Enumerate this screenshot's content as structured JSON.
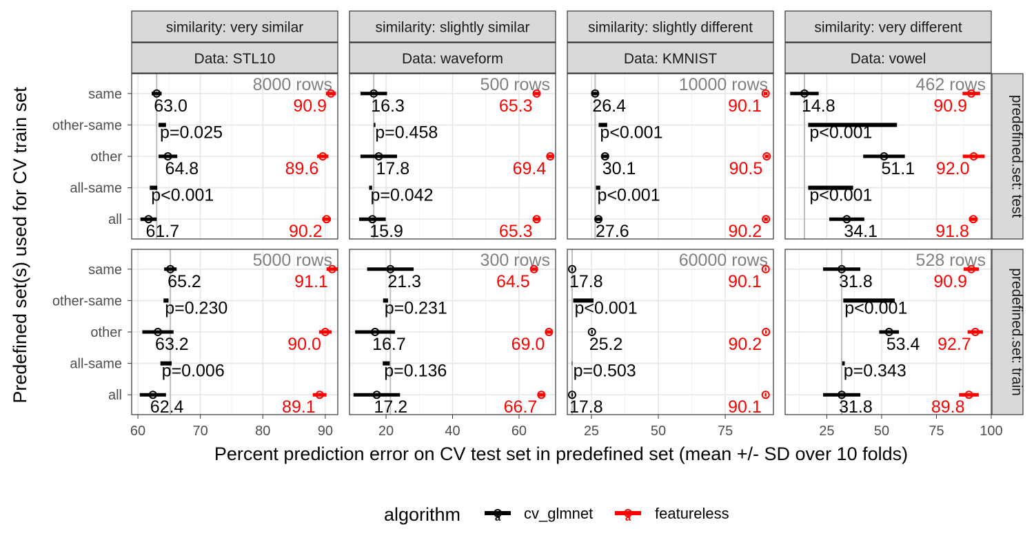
{
  "axis": {
    "xlabel": "Percent prediction error on CV test set in predefined set (mean +/- SD over 10 folds)",
    "ylabel": "Predefined set(s) used for CV train set"
  },
  "legend": {
    "title": "algorithm",
    "items": [
      {
        "name": "cv_glmnet",
        "color": "#000000",
        "key_glyph": "a"
      },
      {
        "name": "featureless",
        "color": "#ff0000",
        "key_glyph": "a"
      }
    ]
  },
  "colors": {
    "cv_glmnet": "#000000",
    "featureless": "#ff0000",
    "rows_label": "#808080",
    "reference_line": "#bdbdbd",
    "strip_fill": "#d9d9d9"
  },
  "chart_data": {
    "type": "scatter",
    "description_note": "",
    "categories": [
      "same",
      "other-same",
      "other",
      "all-same",
      "all"
    ],
    "rows": [
      {
        "label": "predefined.set: test",
        "set": "test"
      },
      {
        "label": "predefined.set: train",
        "set": "train"
      }
    ],
    "columns": [
      {
        "similarity": "similarity: very similar",
        "data": "Data: STL10",
        "xlim": [
          59,
          92
        ],
        "ticks": [
          60,
          70,
          80,
          90
        ],
        "tick_labels": [
          "60",
          "70",
          "80",
          "90"
        ]
      },
      {
        "similarity": "similarity: slightly similar",
        "data": "Data: waveform",
        "xlim": [
          9,
          71
        ],
        "ticks": [
          20,
          40,
          60
        ],
        "tick_labels": [
          "20",
          "40",
          "60"
        ]
      },
      {
        "similarity": "similarity: slightly different",
        "data": "Data: KMNIST",
        "xlim": [
          16,
          93
        ],
        "ticks": [
          25,
          50,
          75
        ],
        "tick_labels": [
          "25",
          "50",
          "75"
        ]
      },
      {
        "similarity": "similarity: very different",
        "data": "Data: vowel",
        "xlim": [
          6,
          100
        ],
        "ticks": [
          25,
          50,
          75,
          100
        ],
        "tick_labels": [
          "25",
          "50",
          "75",
          "100"
        ]
      }
    ],
    "panels": [
      {
        "col": 0,
        "row": 0,
        "rows_label": "8000 rows",
        "reference": 63.0,
        "points": [
          {
            "category": "same",
            "algorithm": "cv_glmnet",
            "mean": 63.0,
            "sd": 0.8,
            "label": "63.0"
          },
          {
            "category": "same",
            "algorithm": "featureless",
            "mean": 90.9,
            "sd": 0.8,
            "label": "90.9"
          },
          {
            "category": "other",
            "algorithm": "cv_glmnet",
            "mean": 64.8,
            "sd": 1.5,
            "label": "64.8"
          },
          {
            "category": "other",
            "algorithm": "featureless",
            "mean": 89.6,
            "sd": 0.9,
            "label": "89.6"
          },
          {
            "category": "all",
            "algorithm": "cv_glmnet",
            "mean": 61.7,
            "sd": 1.3,
            "label": "61.7"
          },
          {
            "category": "all",
            "algorithm": "featureless",
            "mean": 90.2,
            "sd": 0.7,
            "label": "90.2"
          }
        ],
        "diffs": [
          {
            "category": "other-same",
            "lo": 63.3,
            "hi": 64.5,
            "label": "p=0.025"
          },
          {
            "category": "all-same",
            "lo": 61.9,
            "hi": 63.1,
            "label": "p<0.001"
          }
        ]
      },
      {
        "col": 1,
        "row": 0,
        "rows_label": "500 rows",
        "reference": 16.3,
        "points": [
          {
            "category": "same",
            "algorithm": "cv_glmnet",
            "mean": 16.3,
            "sd": 4.0,
            "label": "16.3"
          },
          {
            "category": "same",
            "algorithm": "featureless",
            "mean": 65.3,
            "sd": 0.8,
            "label": "65.3"
          },
          {
            "category": "other",
            "algorithm": "cv_glmnet",
            "mean": 17.8,
            "sd": 5.5,
            "label": "17.8"
          },
          {
            "category": "other",
            "algorithm": "featureless",
            "mean": 69.4,
            "sd": 0.8,
            "label": "69.4"
          },
          {
            "category": "all",
            "algorithm": "cv_glmnet",
            "mean": 15.9,
            "sd": 4.0,
            "label": "15.9"
          },
          {
            "category": "all",
            "algorithm": "featureless",
            "mean": 65.3,
            "sd": 0.8,
            "label": "65.3"
          }
        ],
        "diffs": [
          {
            "category": "other-same",
            "lo": 16.3,
            "hi": 16.8,
            "label": "p=0.458"
          },
          {
            "category": "all-same",
            "lo": 14.9,
            "hi": 15.8,
            "label": "p=0.042"
          }
        ]
      },
      {
        "col": 2,
        "row": 0,
        "rows_label": "10000 rows",
        "reference": 26.4,
        "points": [
          {
            "category": "same",
            "algorithm": "cv_glmnet",
            "mean": 26.4,
            "sd": 1.2,
            "label": "26.4"
          },
          {
            "category": "same",
            "algorithm": "featureless",
            "mean": 90.1,
            "sd": 0.7,
            "label": "90.1"
          },
          {
            "category": "other",
            "algorithm": "cv_glmnet",
            "mean": 30.1,
            "sd": 1.5,
            "label": "30.1"
          },
          {
            "category": "other",
            "algorithm": "featureless",
            "mean": 90.5,
            "sd": 0.7,
            "label": "90.5"
          },
          {
            "category": "all",
            "algorithm": "cv_glmnet",
            "mean": 27.6,
            "sd": 1.2,
            "label": "27.6"
          },
          {
            "category": "all",
            "algorithm": "featureless",
            "mean": 90.2,
            "sd": 0.7,
            "label": "90.2"
          }
        ],
        "diffs": [
          {
            "category": "other-same",
            "lo": 27.7,
            "hi": 30.9,
            "label": "p<0.001"
          },
          {
            "category": "all-same",
            "lo": 26.7,
            "hi": 28.3,
            "label": "p<0.001"
          }
        ]
      },
      {
        "col": 3,
        "row": 0,
        "rows_label": "462 rows",
        "reference": 14.8,
        "points": [
          {
            "category": "same",
            "algorithm": "cv_glmnet",
            "mean": 14.8,
            "sd": 6.5,
            "label": "14.8"
          },
          {
            "category": "same",
            "algorithm": "featureless",
            "mean": 90.9,
            "sd": 4.0,
            "label": "90.9"
          },
          {
            "category": "other",
            "algorithm": "cv_glmnet",
            "mean": 51.1,
            "sd": 9.5,
            "label": "51.1"
          },
          {
            "category": "other",
            "algorithm": "featureless",
            "mean": 92.0,
            "sd": 5.0,
            "label": "92.0"
          },
          {
            "category": "all",
            "algorithm": "cv_glmnet",
            "mean": 34.1,
            "sd": 8.0,
            "label": "34.1"
          },
          {
            "category": "all",
            "algorithm": "featureless",
            "mean": 91.8,
            "sd": 2.0,
            "label": "91.8"
          }
        ],
        "diffs": [
          {
            "category": "other-same",
            "lo": 16.5,
            "hi": 57.0,
            "label": "p<0.001"
          },
          {
            "category": "all-same",
            "lo": 16.5,
            "hi": 37.0,
            "label": "p<0.001"
          }
        ]
      },
      {
        "col": 0,
        "row": 1,
        "rows_label": "5000 rows",
        "reference": 65.2,
        "points": [
          {
            "category": "same",
            "algorithm": "cv_glmnet",
            "mean": 65.2,
            "sd": 1.0,
            "label": "65.2"
          },
          {
            "category": "same",
            "algorithm": "featureless",
            "mean": 91.1,
            "sd": 0.9,
            "label": "91.1"
          },
          {
            "category": "other",
            "algorithm": "cv_glmnet",
            "mean": 63.2,
            "sd": 2.5,
            "label": "63.2"
          },
          {
            "category": "other",
            "algorithm": "featureless",
            "mean": 90.0,
            "sd": 1.0,
            "label": "90.0"
          },
          {
            "category": "all",
            "algorithm": "cv_glmnet",
            "mean": 62.4,
            "sd": 2.1,
            "label": "62.4"
          },
          {
            "category": "all",
            "algorithm": "featureless",
            "mean": 89.1,
            "sd": 1.1,
            "label": "89.1"
          }
        ],
        "diffs": [
          {
            "category": "other-same",
            "lo": 64.1,
            "hi": 64.9,
            "label": "p=0.230"
          },
          {
            "category": "all-same",
            "lo": 63.6,
            "hi": 65.4,
            "label": "p=0.006"
          }
        ]
      },
      {
        "col": 1,
        "row": 1,
        "rows_label": "300 rows",
        "reference": 21.3,
        "points": [
          {
            "category": "same",
            "algorithm": "cv_glmnet",
            "mean": 21.3,
            "sd": 7.0,
            "label": "21.3"
          },
          {
            "category": "same",
            "algorithm": "featureless",
            "mean": 64.5,
            "sd": 0.8,
            "label": "64.5"
          },
          {
            "category": "other",
            "algorithm": "cv_glmnet",
            "mean": 16.7,
            "sd": 6.0,
            "label": "16.7"
          },
          {
            "category": "other",
            "algorithm": "featureless",
            "mean": 69.0,
            "sd": 0.8,
            "label": "69.0"
          },
          {
            "category": "all",
            "algorithm": "cv_glmnet",
            "mean": 17.2,
            "sd": 7.0,
            "label": "17.2"
          },
          {
            "category": "all",
            "algorithm": "featureless",
            "mean": 66.7,
            "sd": 0.8,
            "label": "66.7"
          }
        ],
        "diffs": [
          {
            "category": "other-same",
            "lo": 19.1,
            "hi": 20.6,
            "label": "p=0.231"
          },
          {
            "category": "all-same",
            "lo": 19.0,
            "hi": 21.1,
            "label": "p=0.136"
          }
        ]
      },
      {
        "col": 2,
        "row": 1,
        "rows_label": "60000 rows",
        "reference": 17.8,
        "points": [
          {
            "category": "same",
            "algorithm": "cv_glmnet",
            "mean": 17.8,
            "sd": 0.3,
            "label": "17.8"
          },
          {
            "category": "same",
            "algorithm": "featureless",
            "mean": 90.1,
            "sd": 0.3,
            "label": "90.1"
          },
          {
            "category": "other",
            "algorithm": "cv_glmnet",
            "mean": 25.2,
            "sd": 0.3,
            "label": "25.2"
          },
          {
            "category": "other",
            "algorithm": "featureless",
            "mean": 90.2,
            "sd": 0.3,
            "label": "90.2"
          },
          {
            "category": "all",
            "algorithm": "cv_glmnet",
            "mean": 17.8,
            "sd": 0.3,
            "label": "17.8"
          },
          {
            "category": "all",
            "algorithm": "featureless",
            "mean": 90.1,
            "sd": 0.3,
            "label": "90.1"
          }
        ],
        "diffs": [
          {
            "category": "other-same",
            "lo": 18.2,
            "hi": 25.8,
            "label": "p<0.001"
          },
          {
            "category": "all-same",
            "lo": 17.7,
            "hi": 17.9,
            "label": "p=0.503"
          }
        ]
      },
      {
        "col": 3,
        "row": 1,
        "rows_label": "528 rows",
        "reference": 31.8,
        "points": [
          {
            "category": "same",
            "algorithm": "cv_glmnet",
            "mean": 31.8,
            "sd": 8.5,
            "label": "31.8"
          },
          {
            "category": "same",
            "algorithm": "featureless",
            "mean": 90.9,
            "sd": 3.5,
            "label": "90.9"
          },
          {
            "category": "other",
            "algorithm": "cv_glmnet",
            "mean": 53.4,
            "sd": 4.5,
            "label": "53.4"
          },
          {
            "category": "other",
            "algorithm": "featureless",
            "mean": 92.7,
            "sd": 3.5,
            "label": "92.7"
          },
          {
            "category": "all",
            "algorithm": "cv_glmnet",
            "mean": 31.8,
            "sd": 8.5,
            "label": "31.8"
          },
          {
            "category": "all",
            "algorithm": "featureless",
            "mean": 89.8,
            "sd": 4.5,
            "label": "89.8"
          }
        ],
        "diffs": [
          {
            "category": "other-same",
            "lo": 32.5,
            "hi": 56.0,
            "label": "p<0.001"
          },
          {
            "category": "all-same",
            "lo": 32.0,
            "hi": 33.2,
            "label": "p=0.343"
          }
        ]
      }
    ]
  }
}
